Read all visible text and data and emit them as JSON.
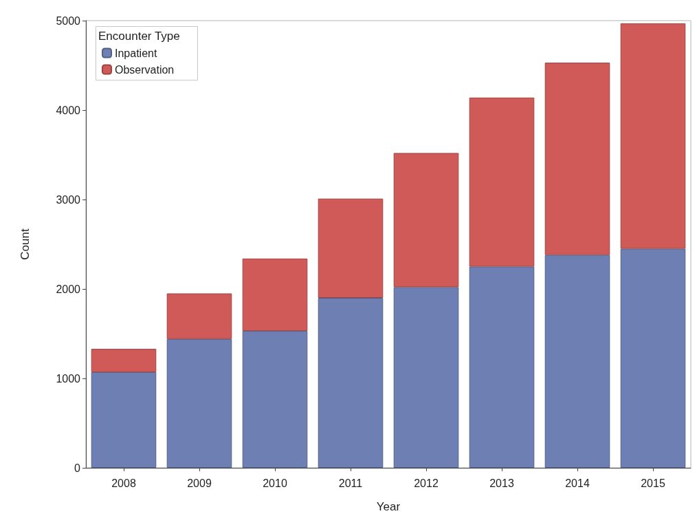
{
  "chart_data": {
    "type": "bar",
    "stacked": true,
    "xlabel": "Year",
    "ylabel": "Count",
    "legend_title": "Encounter Type",
    "legend": "top left",
    "categories": [
      "2008",
      "2009",
      "2010",
      "2011",
      "2012",
      "2013",
      "2014",
      "2015"
    ],
    "series": [
      {
        "name": "Inpatient",
        "color": "#6e7fb3",
        "values": [
          1070,
          1440,
          1530,
          1900,
          2020,
          2250,
          2380,
          2450
        ]
      },
      {
        "name": "Observation",
        "color": "#d05a58",
        "values": [
          260,
          510,
          810,
          1110,
          1500,
          1890,
          2150,
          2520
        ]
      }
    ],
    "ylim": [
      0,
      5000
    ],
    "yticks": [
      0,
      1000,
      2000,
      3000,
      4000,
      5000
    ],
    "grid": false
  }
}
